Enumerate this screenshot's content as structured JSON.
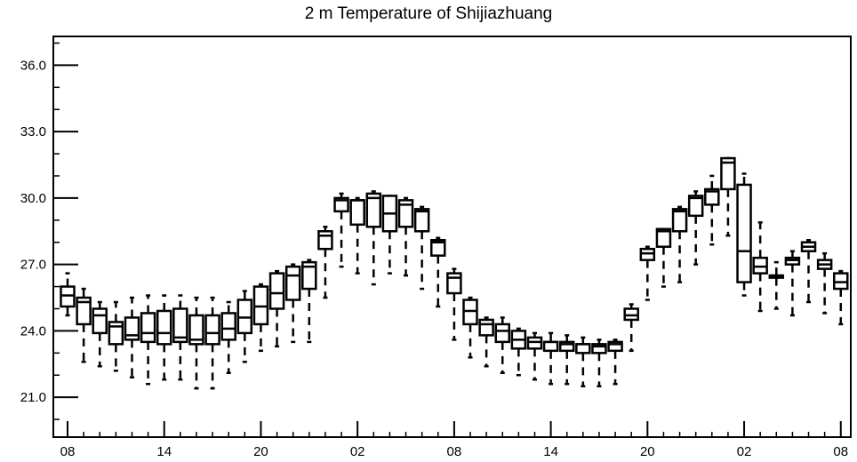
{
  "chart_data": {
    "type": "box",
    "title": "2 m Temperature of Shijiazhuang",
    "xlabel": "",
    "ylabel": "",
    "ylim": [
      19.2,
      37.3
    ],
    "yticks": [
      21.0,
      24.0,
      27.0,
      30.0,
      33.0,
      36.0
    ],
    "ytick_labels": [
      "21.0",
      "24.0",
      "27.0",
      "30.0",
      "33.0",
      "36.0"
    ],
    "yminor_step": 1.0,
    "xlim": [
      -1.5,
      81.5
    ],
    "xticks": [
      0,
      6,
      12,
      18,
      24,
      30,
      36,
      42,
      48,
      54,
      60,
      66,
      72,
      78
    ],
    "xtick_labels": [
      "08",
      "14",
      "20",
      "02",
      "08",
      "14",
      "20",
      "02",
      "08",
      "14",
      "20",
      "02",
      "08",
      "14"
    ],
    "xticks_visible_labels": [
      "08",
      "14",
      "20",
      "02",
      "08",
      "14",
      "20",
      "02",
      "08"
    ],
    "grid": false,
    "boxes": [
      {
        "x": 0,
        "min": 24.7,
        "q1": 25.1,
        "median": 25.6,
        "q3": 26.0,
        "max": 26.6
      },
      {
        "x": 1,
        "min": 22.6,
        "q1": 24.3,
        "median": 25.3,
        "q3": 25.5,
        "max": 25.9
      },
      {
        "x": 2,
        "min": 22.4,
        "q1": 23.9,
        "median": 24.7,
        "q3": 25.0,
        "max": 25.3
      },
      {
        "x": 3,
        "min": 22.2,
        "q1": 23.4,
        "median": 24.2,
        "q3": 24.4,
        "max": 25.3
      },
      {
        "x": 4,
        "min": 21.9,
        "q1": 23.6,
        "median": 23.8,
        "q3": 24.6,
        "max": 25.5
      },
      {
        "x": 5,
        "min": 21.6,
        "q1": 23.5,
        "median": 23.9,
        "q3": 24.8,
        "max": 25.6
      },
      {
        "x": 6,
        "min": 21.8,
        "q1": 23.4,
        "median": 23.9,
        "q3": 24.9,
        "max": 25.6
      },
      {
        "x": 7,
        "min": 21.8,
        "q1": 23.5,
        "median": 23.7,
        "q3": 25.0,
        "max": 25.6
      },
      {
        "x": 8,
        "min": 21.4,
        "q1": 23.4,
        "median": 23.6,
        "q3": 24.7,
        "max": 25.5
      },
      {
        "x": 9,
        "min": 21.4,
        "q1": 23.4,
        "median": 23.9,
        "q3": 24.7,
        "max": 25.5
      },
      {
        "x": 10,
        "min": 22.1,
        "q1": 23.6,
        "median": 24.1,
        "q3": 24.8,
        "max": 25.3
      },
      {
        "x": 11,
        "min": 22.6,
        "q1": 23.9,
        "median": 24.6,
        "q3": 25.4,
        "max": 25.8
      },
      {
        "x": 12,
        "min": 23.1,
        "q1": 24.3,
        "median": 25.1,
        "q3": 26.0,
        "max": 26.1
      },
      {
        "x": 13,
        "min": 23.3,
        "q1": 25.0,
        "median": 25.7,
        "q3": 26.6,
        "max": 26.7
      },
      {
        "x": 14,
        "min": 23.5,
        "q1": 25.4,
        "median": 26.5,
        "q3": 26.9,
        "max": 27.0
      },
      {
        "x": 15,
        "min": 23.5,
        "q1": 25.9,
        "median": 26.9,
        "q3": 27.1,
        "max": 27.2
      },
      {
        "x": 16,
        "min": 25.5,
        "q1": 27.7,
        "median": 28.3,
        "q3": 28.5,
        "max": 28.7
      },
      {
        "x": 17,
        "min": 26.9,
        "q1": 29.4,
        "median": 29.9,
        "q3": 30.0,
        "max": 30.2
      },
      {
        "x": 18,
        "min": 26.6,
        "q1": 28.8,
        "median": 29.9,
        "q3": 29.9,
        "max": 30.0
      },
      {
        "x": 19,
        "min": 26.1,
        "q1": 28.7,
        "median": 30.0,
        "q3": 30.2,
        "max": 30.3
      },
      {
        "x": 20,
        "min": 26.6,
        "q1": 28.5,
        "median": 29.3,
        "q3": 30.1,
        "max": 30.1
      },
      {
        "x": 21,
        "min": 26.5,
        "q1": 28.7,
        "median": 29.7,
        "q3": 29.9,
        "max": 30.0
      },
      {
        "x": 22,
        "min": 25.9,
        "q1": 28.5,
        "median": 29.4,
        "q3": 29.5,
        "max": 29.6
      },
      {
        "x": 23,
        "min": 25.1,
        "q1": 27.4,
        "median": 28.0,
        "q3": 28.1,
        "max": 28.2
      },
      {
        "x": 24,
        "min": 23.6,
        "q1": 25.7,
        "median": 26.4,
        "q3": 26.6,
        "max": 26.8
      },
      {
        "x": 25,
        "min": 22.8,
        "q1": 24.3,
        "median": 24.9,
        "q3": 25.4,
        "max": 25.5
      },
      {
        "x": 26,
        "min": 22.4,
        "q1": 23.8,
        "median": 24.3,
        "q3": 24.5,
        "max": 24.6
      },
      {
        "x": 27,
        "min": 22.1,
        "q1": 23.5,
        "median": 24.0,
        "q3": 24.3,
        "max": 24.6
      },
      {
        "x": 28,
        "min": 22.0,
        "q1": 23.2,
        "median": 23.6,
        "q3": 24.0,
        "max": 24.1
      },
      {
        "x": 29,
        "min": 21.8,
        "q1": 23.2,
        "median": 23.5,
        "q3": 23.7,
        "max": 23.9
      },
      {
        "x": 30,
        "min": 21.6,
        "q1": 23.1,
        "median": 23.5,
        "q3": 23.5,
        "max": 23.9
      },
      {
        "x": 31,
        "min": 21.6,
        "q1": 23.1,
        "median": 23.4,
        "q3": 23.5,
        "max": 23.8
      },
      {
        "x": 32,
        "min": 21.5,
        "q1": 23.0,
        "median": 23.4,
        "q3": 23.4,
        "max": 23.7
      },
      {
        "x": 33,
        "min": 21.5,
        "q1": 23.0,
        "median": 23.3,
        "q3": 23.4,
        "max": 23.6
      },
      {
        "x": 34,
        "min": 21.6,
        "q1": 23.1,
        "median": 23.4,
        "q3": 23.5,
        "max": 23.6
      },
      {
        "x": 35,
        "min": 23.1,
        "q1": 24.5,
        "median": 24.7,
        "q3": 25.0,
        "max": 25.2
      },
      {
        "x": 36,
        "min": 25.4,
        "q1": 27.2,
        "median": 27.5,
        "q3": 27.7,
        "max": 27.8
      },
      {
        "x": 37,
        "min": 26.0,
        "q1": 27.8,
        "median": 28.5,
        "q3": 28.6,
        "max": 28.6
      },
      {
        "x": 38,
        "min": 26.2,
        "q1": 28.5,
        "median": 29.4,
        "q3": 29.5,
        "max": 29.6
      },
      {
        "x": 39,
        "min": 27.0,
        "q1": 29.2,
        "median": 30.0,
        "q3": 30.1,
        "max": 30.3
      },
      {
        "x": 40,
        "min": 27.9,
        "q1": 29.7,
        "median": 30.3,
        "q3": 30.4,
        "max": 31.0
      },
      {
        "x": 41,
        "min": 28.3,
        "q1": 30.4,
        "median": 31.6,
        "q3": 31.8,
        "max": 31.8
      },
      {
        "x": 42,
        "min": 25.6,
        "q1": 26.2,
        "median": 27.6,
        "q3": 30.6,
        "max": 31.1
      },
      {
        "x": 43,
        "min": 24.9,
        "q1": 26.6,
        "median": 26.9,
        "q3": 27.3,
        "max": 28.9
      },
      {
        "x": 44,
        "min": 25.0,
        "q1": 26.4,
        "median": 26.5,
        "q3": 26.5,
        "max": 27.1
      },
      {
        "x": 45,
        "min": 24.7,
        "q1": 27.0,
        "median": 27.2,
        "q3": 27.3,
        "max": 27.6
      },
      {
        "x": 46,
        "min": 25.3,
        "q1": 27.6,
        "median": 27.8,
        "q3": 28.0,
        "max": 28.1
      },
      {
        "x": 47,
        "min": 24.8,
        "q1": 26.8,
        "median": 27.0,
        "q3": 27.2,
        "max": 27.5
      },
      {
        "x": 48,
        "min": 24.3,
        "q1": 25.9,
        "median": 26.2,
        "q3": 26.6,
        "max": 26.7
      }
    ]
  }
}
